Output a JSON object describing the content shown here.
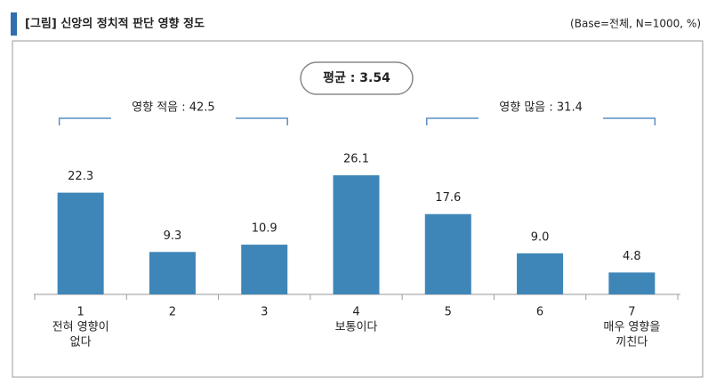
{
  "chart_data": {
    "type": "bar",
    "title": "[그림] 신앙의 정치적 판단 영향 정도",
    "base_note": "(Base=전체, N=1000, %)",
    "mean_label": "평균 : 3.54",
    "brackets": [
      {
        "label": "영향 적음 : 42.5",
        "from": 0,
        "to": 2
      },
      {
        "label": "영향 많음 : 31.4",
        "from": 4,
        "to": 6
      }
    ],
    "categories": [
      [
        "1",
        "전혀 영향이",
        "없다"
      ],
      [
        "2"
      ],
      [
        "3"
      ],
      [
        "4",
        "보통이다"
      ],
      [
        "5"
      ],
      [
        "6"
      ],
      [
        "7",
        "매우 영향을",
        "끼친다"
      ]
    ],
    "values": [
      22.3,
      9.3,
      10.9,
      26.1,
      17.6,
      9.0,
      4.8
    ],
    "value_labels": [
      "22.3",
      "9.3",
      "10.9",
      "26.1",
      "17.6",
      "9.0",
      "4.8"
    ],
    "color": "#3f86b8"
  }
}
